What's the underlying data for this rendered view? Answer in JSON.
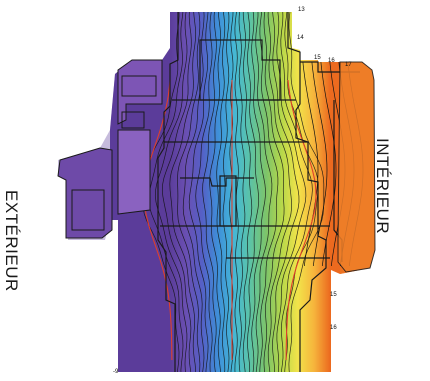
{
  "labels": {
    "exterior": "EXTÉRIEUR",
    "interior": "INTÉRIEUR"
  },
  "isotherm_labels": [
    "13",
    "14",
    "15",
    "16",
    "17",
    "15",
    "16",
    "-9"
  ],
  "colors": {
    "cold": "#5b3d9a",
    "warm": "#ec6a1f",
    "frame_stroke": "#1a1a1a",
    "profile_fill": "#7d55b5",
    "isotherm_line": "#111111",
    "critical_isotherm": "#e0402a"
  },
  "gradient_stops": [
    "#5b3d9a",
    "#6a4fb2",
    "#5560c6",
    "#3f8fd8",
    "#45b7d6",
    "#5cc3a6",
    "#7dc46a",
    "#b8d84a",
    "#f2e34a",
    "#f6b43c",
    "#ec6a1f"
  ]
}
